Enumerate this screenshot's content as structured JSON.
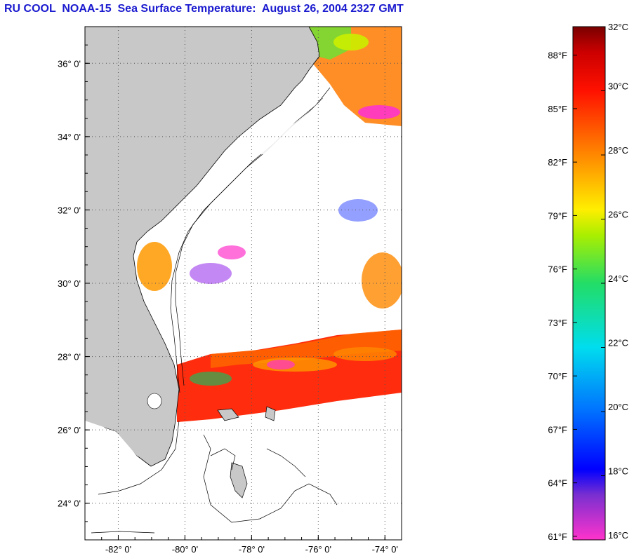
{
  "title": "RU COOL  NOAA-15  Sea Surface Temperature:  August 26, 2004 2327 GMT",
  "map": {
    "lon_range": [
      -83,
      -73.5
    ],
    "lat_range": [
      23,
      37
    ],
    "lat_ticks": [
      {
        "lat": 36,
        "label": "36° 0'"
      },
      {
        "lat": 34,
        "label": "34° 0'"
      },
      {
        "lat": 32,
        "label": "32° 0'"
      },
      {
        "lat": 30,
        "label": "30° 0'"
      },
      {
        "lat": 28,
        "label": "28° 0'"
      },
      {
        "lat": 26,
        "label": "26° 0'"
      },
      {
        "lat": 24,
        "label": "24° 0'"
      }
    ],
    "lon_ticks": [
      {
        "lon": -82,
        "label": "-82° 0'"
      },
      {
        "lon": -80,
        "label": "-80° 0'"
      },
      {
        "lon": -78,
        "label": "-78° 0'"
      },
      {
        "lon": -76,
        "label": "-76° 0'"
      },
      {
        "lon": -74,
        "label": "-74° 0'"
      }
    ],
    "colors": {
      "land": "#c8c8c8",
      "cloud": "#ffffff",
      "grid": "#555555",
      "coast": "#000000"
    }
  },
  "colorbar": {
    "celsius_labels": [
      "32°C",
      "30°C",
      "28°C",
      "26°C",
      "24°C",
      "22°C",
      "20°C",
      "18°C",
      "16°C"
    ],
    "fahrenheit_labels": [
      "88°F",
      "85°F",
      "82°F",
      "79°F",
      "76°F",
      "73°F",
      "70°F",
      "67°F",
      "64°F",
      "61°F"
    ],
    "celsius_range": [
      16,
      32
    ],
    "gradient_stops": [
      {
        "c": 16,
        "color": "#ff33cc"
      },
      {
        "c": 17.4,
        "color": "#7a2fd0"
      },
      {
        "c": 18.2,
        "color": "#0000ff"
      },
      {
        "c": 20,
        "color": "#0070ff"
      },
      {
        "c": 22,
        "color": "#00ddee"
      },
      {
        "c": 24,
        "color": "#22dd66"
      },
      {
        "c": 25.5,
        "color": "#aaee00"
      },
      {
        "c": 26.3,
        "color": "#ffee00"
      },
      {
        "c": 28,
        "color": "#ff8800"
      },
      {
        "c": 30,
        "color": "#ff1100"
      },
      {
        "c": 31.2,
        "color": "#cc0000"
      },
      {
        "c": 32,
        "color": "#7a0000"
      }
    ]
  }
}
